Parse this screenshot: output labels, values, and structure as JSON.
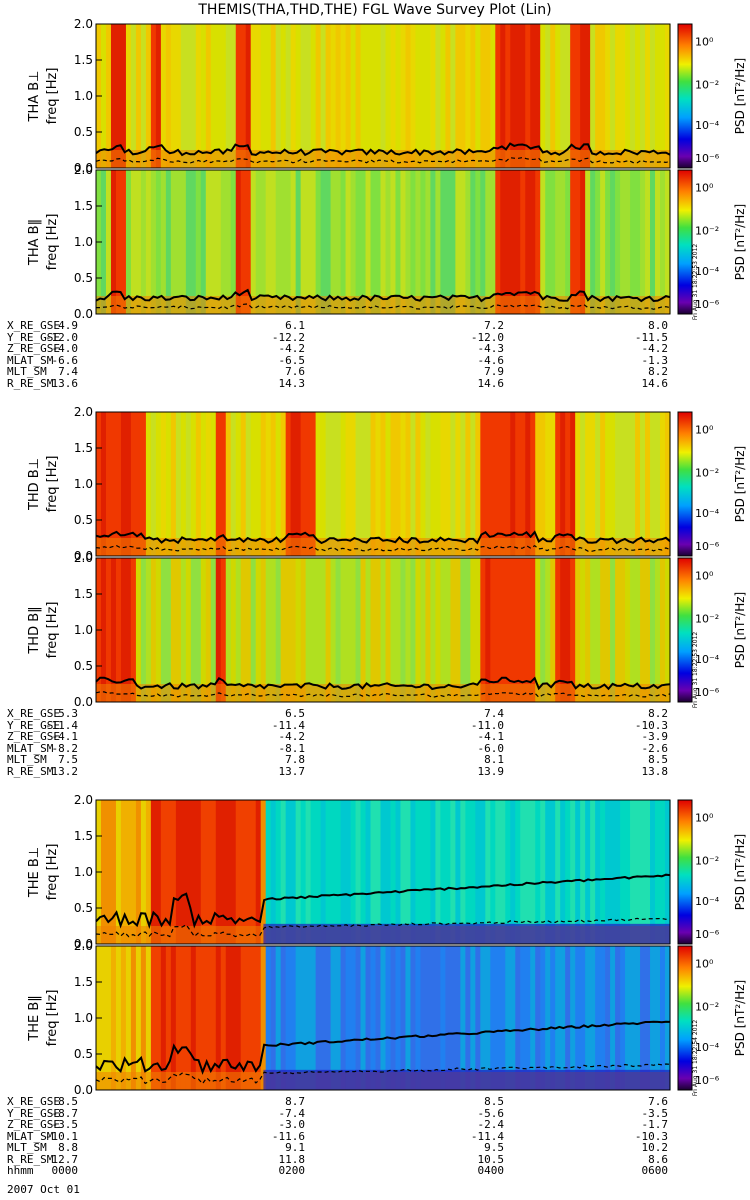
{
  "title": "THEMIS(THA,THD,THE) FGL Wave Survey Plot (Lin)",
  "colorbar": {
    "label": "PSD [nT²/Hz]",
    "ticks": [
      "10⁰",
      "10⁻²",
      "10⁻⁴",
      "10⁻⁶"
    ]
  },
  "stamps": [
    "Fri Aug 31 18:22:53 2012",
    "Fri Aug 31 18:22:53 2012",
    "Fri Aug 31 18:22:54 2012"
  ],
  "chart_data": [
    {
      "type": "heatmap",
      "panel": "THA B⊥",
      "ylabel": "THA B⊥\nfreq [Hz]",
      "yticks": [
        "0.0",
        "0.5",
        "1.0",
        "1.5",
        "2.0"
      ],
      "ylim": [
        0,
        2.0
      ],
      "xlim_hours": [
        0,
        6
      ],
      "note": "spectrogram with black frequency traces",
      "bands_hours": [
        [
          0.15,
          0.3
        ],
        [
          0.55,
          0.7
        ],
        [
          1.45,
          1.6
        ],
        [
          4.15,
          4.65
        ],
        [
          4.95,
          5.15
        ]
      ],
      "baseline": "yellow"
    },
    {
      "type": "heatmap",
      "panel": "THA B‖",
      "ylabel": "THA B‖\nfreq [Hz]",
      "yticks": [
        "0.0",
        "0.5",
        "1.0",
        "1.5",
        "2.0"
      ],
      "ylim": [
        0,
        2.0
      ],
      "xlim_hours": [
        0,
        6
      ],
      "bands_hours": [
        [
          0.15,
          0.3
        ],
        [
          1.45,
          1.6
        ],
        [
          4.15,
          4.65
        ],
        [
          4.95,
          5.1
        ]
      ],
      "baseline": "green"
    },
    {
      "type": "heatmap",
      "panel": "THD B⊥",
      "ylabel": "THD B⊥\nfreq [Hz]",
      "yticks": [
        "0.0",
        "0.5",
        "1.0",
        "1.5",
        "2.0"
      ],
      "ylim": [
        0,
        2.0
      ],
      "xlim_hours": [
        0,
        6
      ],
      "bands_hours": [
        [
          0.0,
          0.5
        ],
        [
          1.25,
          1.35
        ],
        [
          2.0,
          2.3
        ],
        [
          4.0,
          4.6
        ],
        [
          4.8,
          5.0
        ]
      ],
      "baseline": "yellow"
    },
    {
      "type": "heatmap",
      "panel": "THD B‖",
      "ylabel": "THD B‖\nfreq [Hz]",
      "yticks": [
        "0.0",
        "0.5",
        "1.0",
        "1.5",
        "2.0"
      ],
      "ylim": [
        0,
        2.0
      ],
      "xlim_hours": [
        0,
        6
      ],
      "bands_hours": [
        [
          0.0,
          0.4
        ],
        [
          1.25,
          1.35
        ],
        [
          4.0,
          4.6
        ],
        [
          4.8,
          5.0
        ]
      ],
      "baseline": "greenyellow"
    },
    {
      "type": "heatmap",
      "panel": "THE B⊥",
      "ylabel": "THE B⊥\nfreq [Hz]",
      "yticks": [
        "0.0",
        "0.5",
        "1.0",
        "1.5",
        "2.0"
      ],
      "ylim": [
        0,
        2.0
      ],
      "xlim_hours": [
        0,
        6
      ],
      "bands_hours": [
        [
          0.6,
          1.7
        ]
      ],
      "baseline": "yellow-then-cyan",
      "transition_hour": 1.75
    },
    {
      "type": "heatmap",
      "panel": "THE B‖",
      "ylabel": "THE B‖\nfreq [Hz]",
      "yticks": [
        "0.0",
        "0.5",
        "1.0",
        "1.5",
        "2.0"
      ],
      "ylim": [
        0,
        2.0
      ],
      "xlim_hours": [
        0,
        6
      ],
      "bands_hours": [
        [
          0.6,
          1.7
        ]
      ],
      "baseline": "yellow-then-cyan",
      "transition_hour": 1.75
    }
  ],
  "ephemeris": [
    {
      "rows": [
        {
          "label": "X_RE_GSE",
          "values": [
            "4.9",
            "6.1",
            "7.2",
            "8.0"
          ]
        },
        {
          "label": "Y_RE_GSE",
          "values": [
            "-12.0",
            "-12.2",
            "-12.0",
            "-11.5"
          ]
        },
        {
          "label": "Z_RE_GSE",
          "values": [
            "-4.0",
            "-4.2",
            "-4.3",
            "-4.2"
          ]
        },
        {
          "label": "MLAT_SM",
          "values": [
            "-6.6",
            "-6.5",
            "-4.6",
            "-1.3"
          ]
        },
        {
          "label": "MLT_SM",
          "values": [
            "7.4",
            "7.6",
            "7.9",
            "8.2"
          ]
        },
        {
          "label": "R_RE_SM",
          "values": [
            "13.6",
            "14.3",
            "14.6",
            "14.6"
          ]
        }
      ]
    },
    {
      "rows": [
        {
          "label": "X_RE_GSE",
          "values": [
            "5.3",
            "6.5",
            "7.4",
            "8.2"
          ]
        },
        {
          "label": "Y_RE_GSE",
          "values": [
            "-11.4",
            "-11.4",
            "-11.0",
            "-10.3"
          ]
        },
        {
          "label": "Z_RE_GSE",
          "values": [
            "-4.1",
            "-4.2",
            "-4.1",
            "-3.9"
          ]
        },
        {
          "label": "MLAT_SM",
          "values": [
            "-8.2",
            "-8.1",
            "-6.0",
            "-2.6"
          ]
        },
        {
          "label": "MLT_SM",
          "values": [
            "7.5",
            "7.8",
            "8.1",
            "8.5"
          ]
        },
        {
          "label": "R_RE_SM",
          "values": [
            "13.2",
            "13.7",
            "13.9",
            "13.8"
          ]
        }
      ]
    },
    {
      "rows": [
        {
          "label": "X_RE_GSE",
          "values": [
            "8.5",
            "8.7",
            "8.5",
            "7.6"
          ]
        },
        {
          "label": "Y_RE_GSE",
          "values": [
            "-8.7",
            "-7.4",
            "-5.6",
            "-3.5"
          ]
        },
        {
          "label": "Z_RE_GSE",
          "values": [
            "-3.5",
            "-3.0",
            "-2.4",
            "-1.7"
          ]
        },
        {
          "label": "MLAT_SM",
          "values": [
            "-10.1",
            "-11.6",
            "-11.4",
            "-10.3"
          ]
        },
        {
          "label": "MLT_SM",
          "values": [
            "8.8",
            "9.1",
            "9.5",
            "10.2"
          ]
        },
        {
          "label": "R_RE_SM",
          "values": [
            "12.7",
            "11.8",
            "10.5",
            "8.6"
          ]
        },
        {
          "label": "hhmm",
          "values": [
            "0000",
            "0200",
            "0400",
            "0600"
          ]
        }
      ]
    }
  ],
  "date_label": "2007 Oct 01"
}
